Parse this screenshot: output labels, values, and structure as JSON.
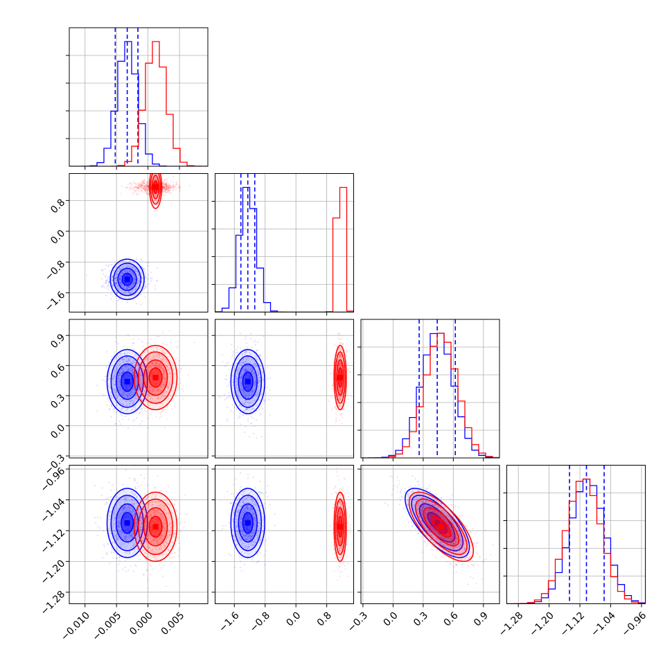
{
  "chart_data": {
    "type": "corner",
    "grid": true,
    "legend": "none",
    "colors": {
      "series_a": "#0000ff",
      "series_b": "#ff0000"
    },
    "parameters": [
      {
        "range": [
          -0.0125,
          0.0095
        ],
        "ticks": [
          -0.01,
          -0.005,
          0.0,
          0.005
        ],
        "tick_labels": [
          "−0.010",
          "−0.005",
          "0.000",
          "0.005"
        ]
      },
      {
        "range": [
          -2.1,
          1.5
        ],
        "ticks": [
          -1.6,
          -0.8,
          0.0,
          0.8
        ],
        "tick_labels": [
          "−1.6",
          "−0.8",
          "0.0",
          "0.8"
        ]
      },
      {
        "range": [
          -0.32,
          1.06
        ],
        "ticks": [
          -0.3,
          0.0,
          0.3,
          0.6,
          0.9
        ],
        "tick_labels": [
          "−0.3",
          "0.0",
          "0.3",
          "0.6",
          "0.9"
        ]
      },
      {
        "range": [
          -1.31,
          -0.95
        ],
        "ticks": [
          -1.28,
          -1.2,
          -1.12,
          -1.04,
          -0.96
        ],
        "tick_labels": [
          "−1.28",
          "−1.20",
          "−1.12",
          "−1.04",
          "−0.96"
        ]
      }
    ],
    "series": [
      {
        "color": "#0000ff",
        "mean": [
          -0.0033,
          -1.25,
          0.44,
          -1.1
        ],
        "std": [
          0.0016,
          0.22,
          0.16,
          0.045
        ],
        "corr": {
          "2-3": -0.7
        },
        "quantile_lines": [
          [
            -0.0052,
            -0.0033,
            -0.0016
          ],
          [
            -1.43,
            -1.25,
            -1.07
          ],
          [
            0.26,
            0.44,
            0.62
          ],
          [
            -1.147,
            -1.103,
            -1.057
          ]
        ]
      },
      {
        "color": "#ff0000",
        "mean": [
          0.0012,
          1.15,
          0.48,
          -1.11
        ],
        "std": [
          0.0017,
          0.08,
          0.16,
          0.045
        ],
        "corr": {
          "2-3": -0.7
        }
      }
    ]
  }
}
